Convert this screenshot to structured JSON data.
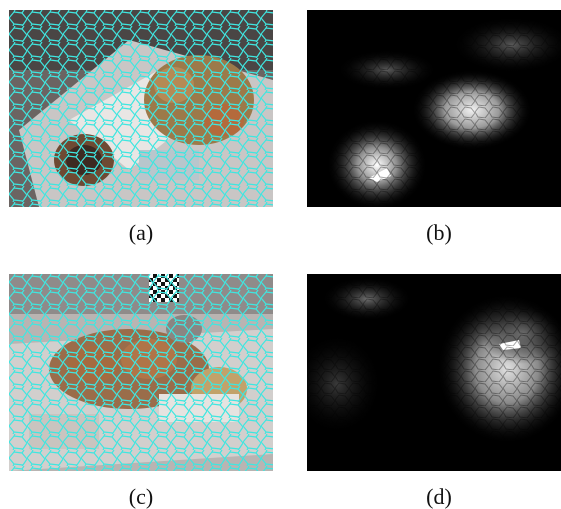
{
  "figure": {
    "panels": [
      {
        "id": "a",
        "caption": "(a)",
        "content": "superpixel-overlay"
      },
      {
        "id": "b",
        "caption": "(b)",
        "content": "saliency-map"
      },
      {
        "id": "c",
        "caption": "(c)",
        "content": "superpixel-overlay"
      },
      {
        "id": "d",
        "caption": "(d)",
        "content": "saliency-map"
      }
    ]
  },
  "colors": {
    "superpixel_boundary": "#3fe6e0",
    "map_background": "#000000",
    "caption_text": "#111111"
  }
}
